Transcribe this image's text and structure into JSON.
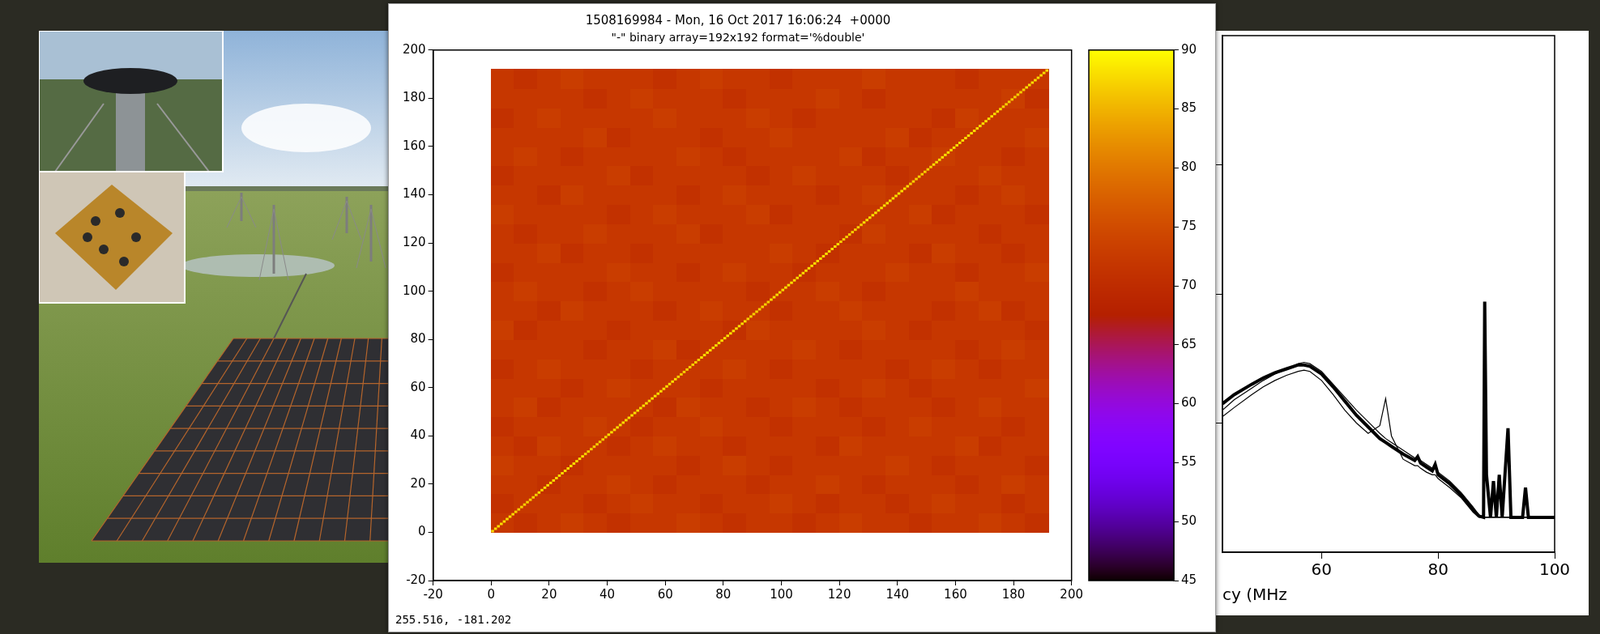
{
  "chart_data": [
    {
      "type": "heatmap",
      "title": "1508169984 - Mon, 16 Oct 2017 16:06:24  +0000",
      "subtitle": "\"-\" binary array=192x192 format='%double'",
      "xlim": [
        -20,
        200
      ],
      "xticks": [
        -20,
        0,
        20,
        40,
        60,
        80,
        100,
        120,
        140,
        160,
        180,
        200
      ],
      "ylim": [
        -20,
        200
      ],
      "yticks": [
        -20,
        0,
        20,
        40,
        60,
        80,
        100,
        120,
        140,
        160,
        180,
        200
      ],
      "cell_range": [
        0,
        192
      ],
      "cells": [
        [
          72,
          71,
          72,
          73,
          72,
          71,
          72,
          72,
          73,
          72,
          71,
          72,
          72,
          71,
          72,
          73,
          72,
          72,
          71,
          72,
          72,
          73,
          72,
          71
        ],
        [
          71,
          72,
          72,
          72,
          71,
          72,
          73,
          72,
          72,
          71,
          72,
          72,
          73,
          72,
          71,
          72,
          72,
          71,
          72,
          73,
          72,
          72,
          71,
          72
        ],
        [
          72,
          72,
          71,
          72,
          72,
          73,
          72,
          71,
          72,
          72,
          72,
          71,
          72,
          72,
          73,
          72,
          71,
          72,
          72,
          72,
          71,
          72,
          73,
          72
        ],
        [
          73,
          72,
          72,
          71,
          72,
          72,
          72,
          72,
          71,
          72,
          73,
          72,
          71,
          72,
          72,
          72,
          72,
          73,
          72,
          71,
          72,
          72,
          72,
          71
        ],
        [
          72,
          71,
          73,
          72,
          72,
          71,
          72,
          73,
          72,
          72,
          71,
          72,
          72,
          72,
          71,
          73,
          72,
          72,
          72,
          72,
          73,
          71,
          72,
          72
        ],
        [
          71,
          72,
          72,
          72,
          73,
          72,
          71,
          72,
          72,
          73,
          72,
          72,
          71,
          72,
          72,
          72,
          71,
          72,
          73,
          72,
          72,
          72,
          71,
          72
        ],
        [
          72,
          73,
          71,
          72,
          72,
          72,
          72,
          71,
          73,
          72,
          72,
          71,
          72,
          73,
          72,
          71,
          72,
          72,
          72,
          71,
          72,
          73,
          72,
          72
        ],
        [
          72,
          72,
          72,
          71,
          72,
          73,
          72,
          72,
          72,
          71,
          72,
          72,
          72,
          72,
          71,
          72,
          73,
          72,
          71,
          72,
          72,
          72,
          72,
          73
        ],
        [
          71,
          72,
          73,
          72,
          72,
          72,
          71,
          72,
          72,
          72,
          73,
          72,
          71,
          72,
          72,
          72,
          72,
          71,
          72,
          73,
          72,
          71,
          72,
          72
        ],
        [
          72,
          72,
          72,
          72,
          71,
          72,
          72,
          73,
          71,
          72,
          72,
          72,
          72,
          73,
          72,
          71,
          72,
          72,
          72,
          72,
          71,
          72,
          73,
          72
        ],
        [
          73,
          71,
          72,
          72,
          72,
          71,
          72,
          72,
          72,
          72,
          71,
          73,
          72,
          72,
          72,
          72,
          73,
          72,
          71,
          72,
          72,
          72,
          72,
          71
        ],
        [
          72,
          72,
          71,
          73,
          72,
          72,
          72,
          71,
          72,
          73,
          72,
          72,
          71,
          72,
          72,
          73,
          72,
          72,
          72,
          71,
          72,
          73,
          71,
          72
        ],
        [
          72,
          73,
          72,
          72,
          71,
          72,
          73,
          72,
          72,
          72,
          72,
          71,
          72,
          72,
          73,
          72,
          71,
          72,
          72,
          72,
          73,
          72,
          72,
          72
        ],
        [
          71,
          72,
          72,
          72,
          72,
          73,
          72,
          72,
          71,
          72,
          73,
          72,
          72,
          71,
          72,
          72,
          72,
          73,
          72,
          72,
          71,
          72,
          72,
          73
        ],
        [
          72,
          72,
          73,
          71,
          72,
          72,
          71,
          72,
          72,
          72,
          72,
          72,
          73,
          72,
          71,
          72,
          72,
          72,
          71,
          73,
          72,
          72,
          71,
          72
        ],
        [
          72,
          71,
          72,
          72,
          73,
          72,
          72,
          72,
          73,
          71,
          72,
          72,
          72,
          72,
          72,
          71,
          73,
          72,
          72,
          72,
          72,
          71,
          72,
          72
        ],
        [
          73,
          72,
          72,
          72,
          72,
          71,
          72,
          73,
          72,
          72,
          72,
          73,
          71,
          72,
          72,
          72,
          72,
          72,
          73,
          71,
          72,
          72,
          72,
          71
        ],
        [
          72,
          72,
          71,
          73,
          72,
          72,
          72,
          72,
          71,
          72,
          73,
          72,
          72,
          72,
          71,
          72,
          73,
          72,
          72,
          72,
          71,
          72,
          73,
          72
        ],
        [
          71,
          72,
          72,
          72,
          72,
          73,
          71,
          72,
          72,
          72,
          72,
          71,
          72,
          73,
          72,
          72,
          72,
          71,
          72,
          72,
          72,
          73,
          72,
          72
        ],
        [
          72,
          73,
          72,
          71,
          72,
          72,
          72,
          72,
          73,
          72,
          71,
          72,
          72,
          72,
          72,
          73,
          71,
          72,
          72,
          73,
          72,
          72,
          71,
          72
        ],
        [
          72,
          72,
          72,
          72,
          73,
          71,
          72,
          72,
          72,
          71,
          72,
          72,
          73,
          72,
          72,
          72,
          72,
          73,
          71,
          72,
          72,
          72,
          72,
          73
        ],
        [
          71,
          72,
          73,
          72,
          72,
          72,
          72,
          73,
          72,
          72,
          72,
          73,
          72,
          71,
          72,
          72,
          72,
          72,
          72,
          71,
          73,
          72,
          72,
          72
        ],
        [
          72,
          72,
          72,
          72,
          71,
          72,
          73,
          72,
          72,
          72,
          71,
          72,
          72,
          72,
          73,
          72,
          71,
          72,
          72,
          72,
          72,
          72,
          73,
          71
        ],
        [
          72,
          71,
          72,
          73,
          72,
          72,
          72,
          71,
          72,
          73,
          72,
          72,
          71,
          72,
          72,
          72,
          73,
          72,
          72,
          72,
          71,
          72,
          72,
          72
        ]
      ],
      "diagonal": [
        88,
        87,
        88,
        88,
        87,
        88,
        88,
        88,
        87,
        88,
        88,
        87,
        88,
        88,
        88,
        87,
        88,
        88,
        87,
        88,
        88,
        88,
        87,
        88
      ],
      "colorbar_range": [
        45,
        90
      ],
      "colorbar_ticks": [
        45,
        50,
        55,
        60,
        65,
        70,
        75,
        80,
        85,
        90
      ],
      "annotations": [
        "255.516, -181.202"
      ]
    },
    {
      "type": "line",
      "xlabel": "cy (MHz",
      "x": [
        43,
        45,
        48,
        50,
        52,
        54,
        56,
        57,
        58,
        60,
        62,
        64,
        66,
        68,
        70,
        71,
        72,
        74,
        76,
        76.5,
        77,
        78,
        79,
        79.5,
        80,
        82,
        84,
        86,
        87,
        87.8,
        88,
        88.3,
        89,
        89.5,
        90,
        90.5,
        91,
        92,
        92.5,
        93,
        94.5,
        95,
        95.5,
        96,
        98,
        100
      ],
      "xlim": [
        43,
        100
      ],
      "xticks": [
        60,
        80,
        100
      ],
      "ylim": [
        0,
        4
      ],
      "yticks": [
        1,
        2,
        3
      ],
      "tick_labels": "x",
      "series": [
        {
          "color": "#000000",
          "values": [
            1.15,
            1.22,
            1.3,
            1.35,
            1.39,
            1.42,
            1.45,
            1.45,
            1.44,
            1.38,
            1.28,
            1.17,
            1.06,
            0.97,
            0.88,
            0.85,
            0.82,
            0.76,
            0.71,
            0.74,
            0.69,
            0.66,
            0.63,
            0.68,
            0.6,
            0.53,
            0.44,
            0.33,
            0.28,
            0.27,
            1.94,
            0.6,
            0.27,
            0.55,
            0.27,
            0.6,
            0.27,
            0.96,
            0.27,
            0.27,
            0.27,
            0.5,
            0.27,
            0.27,
            0.27,
            0.27
          ]
        },
        {
          "color": "#000000",
          "values": [
            1.05,
            1.12,
            1.22,
            1.28,
            1.33,
            1.37,
            1.4,
            1.41,
            1.4,
            1.33,
            1.22,
            1.1,
            1.0,
            0.92,
            0.98,
            1.19,
            0.9,
            0.72,
            0.67,
            0.67,
            0.65,
            0.62,
            0.6,
            0.6,
            0.57,
            0.5,
            0.42,
            0.31,
            0.27,
            0.27,
            0.27,
            0.27,
            0.27,
            0.27,
            0.27,
            0.27,
            0.27,
            0.27,
            0.27,
            0.27,
            0.27,
            0.27,
            0.27,
            0.27,
            0.27,
            0.27
          ]
        },
        {
          "color": "#000000",
          "values": [
            1.1,
            1.18,
            1.27,
            1.33,
            1.38,
            1.42,
            1.46,
            1.47,
            1.46,
            1.4,
            1.3,
            1.2,
            1.1,
            1.01,
            0.92,
            0.88,
            0.85,
            0.79,
            0.73,
            0.73,
            0.71,
            0.68,
            0.65,
            0.65,
            0.62,
            0.55,
            0.46,
            0.35,
            0.29,
            0.27,
            0.27,
            0.27,
            0.27,
            0.27,
            0.27,
            0.27,
            0.27,
            0.27,
            0.27,
            0.27,
            0.27,
            0.27,
            0.27,
            0.27,
            0.27,
            0.27
          ]
        }
      ]
    }
  ]
}
